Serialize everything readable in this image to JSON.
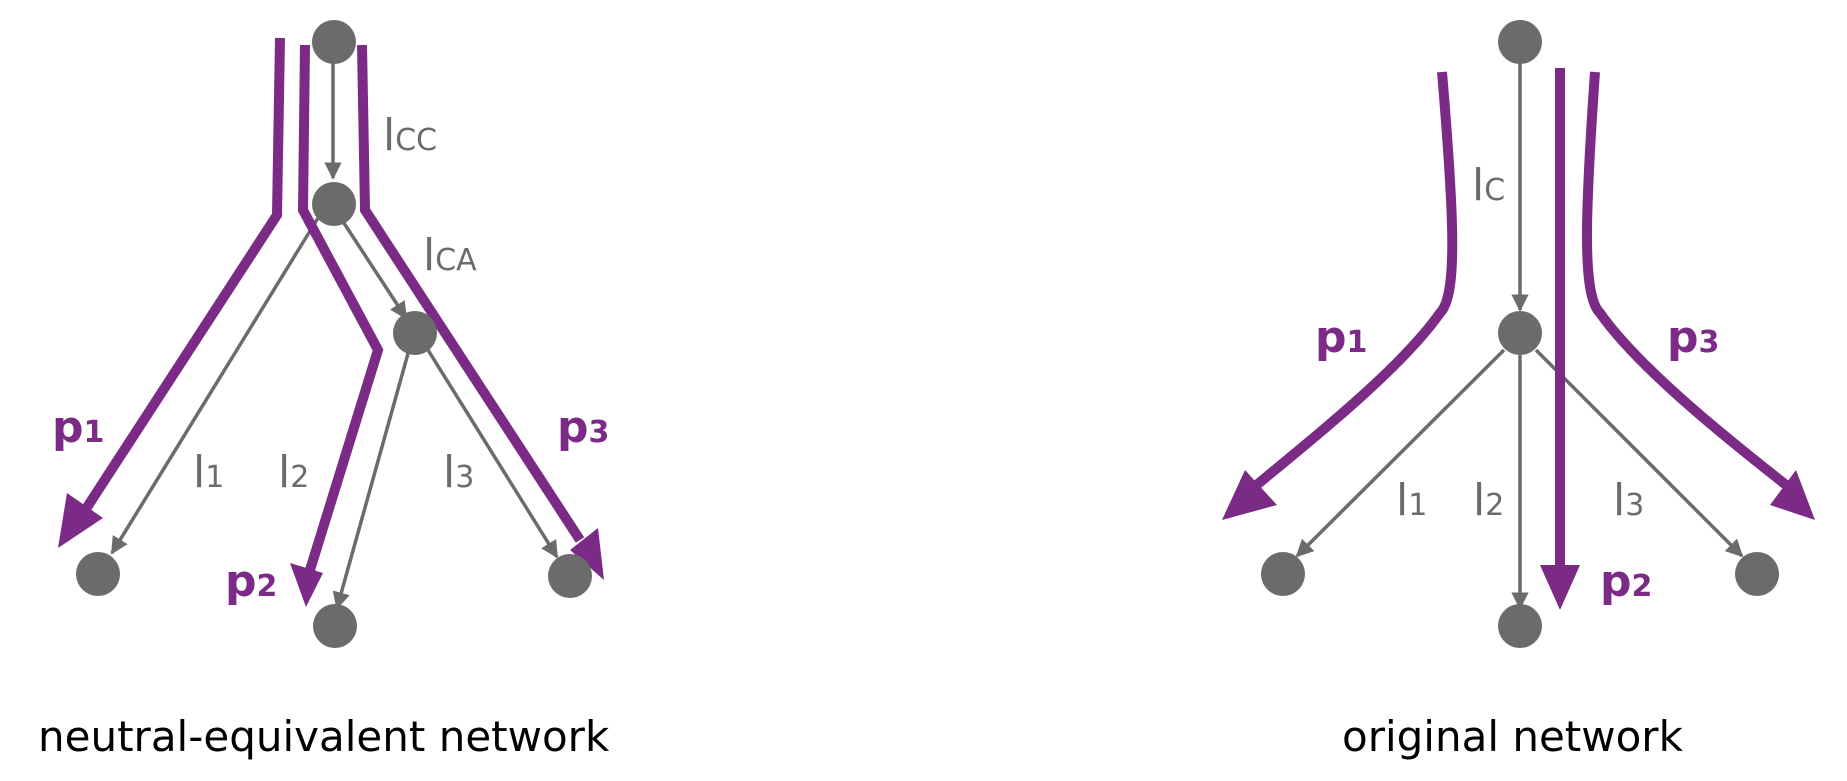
{
  "colors": {
    "node": "#6b6b6b",
    "edge": "#6b6b6b",
    "path": "#7b2a86"
  },
  "left_diagram": {
    "caption": "neutral-equivalent network",
    "edge_labels": {
      "l_cc": {
        "main": "l",
        "sub": "CC"
      },
      "l_ca": {
        "main": "l",
        "sub": "CA"
      },
      "l_1": {
        "main": "l",
        "sub": "1"
      },
      "l_2": {
        "main": "l",
        "sub": "2"
      },
      "l_3": {
        "main": "l",
        "sub": "3"
      }
    },
    "path_labels": {
      "p_1": {
        "main": "p",
        "sub": "1"
      },
      "p_2": {
        "main": "p",
        "sub": "2"
      },
      "p_3": {
        "main": "p",
        "sub": "3"
      }
    }
  },
  "right_diagram": {
    "caption": "original network",
    "edge_labels": {
      "l_c": {
        "main": "l",
        "sub": "C"
      },
      "l_1": {
        "main": "l",
        "sub": "1"
      },
      "l_2": {
        "main": "l",
        "sub": "2"
      },
      "l_3": {
        "main": "l",
        "sub": "3"
      }
    },
    "path_labels": {
      "p_1": {
        "main": "p",
        "sub": "1"
      },
      "p_2": {
        "main": "p",
        "sub": "2"
      },
      "p_3": {
        "main": "p",
        "sub": "3"
      }
    }
  }
}
